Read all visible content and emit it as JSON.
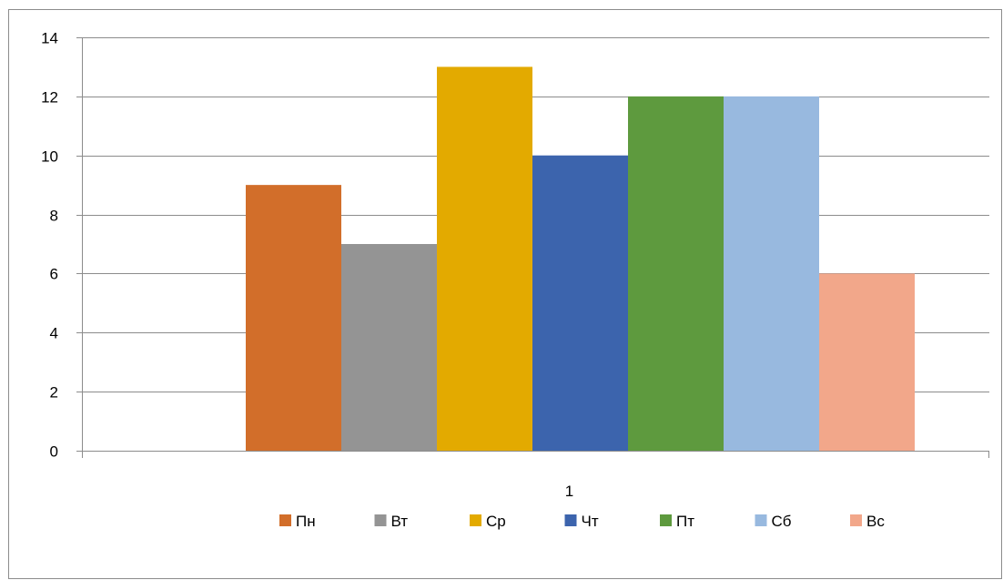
{
  "chart_data": {
    "type": "bar",
    "categories": [
      "1"
    ],
    "series": [
      {
        "name": "Пн",
        "values": [
          9
        ],
        "color": "#D26E2A"
      },
      {
        "name": "Вт",
        "values": [
          7
        ],
        "color": "#949494"
      },
      {
        "name": "Ср",
        "values": [
          13
        ],
        "color": "#E3AA00"
      },
      {
        "name": "Чт",
        "values": [
          10
        ],
        "color": "#3C64AD"
      },
      {
        "name": "Пт",
        "values": [
          12
        ],
        "color": "#5E9A3E"
      },
      {
        "name": "Сб",
        "values": [
          12
        ],
        "color": "#98B9DF"
      },
      {
        "name": "Вс",
        "values": [
          6
        ],
        "color": "#F2A78A"
      }
    ],
    "y_ticks": [
      "0",
      "2",
      "4",
      "6",
      "8",
      "10",
      "12",
      "14"
    ],
    "ylim": [
      0,
      14
    ],
    "grid": true,
    "legend_position": "bottom"
  }
}
